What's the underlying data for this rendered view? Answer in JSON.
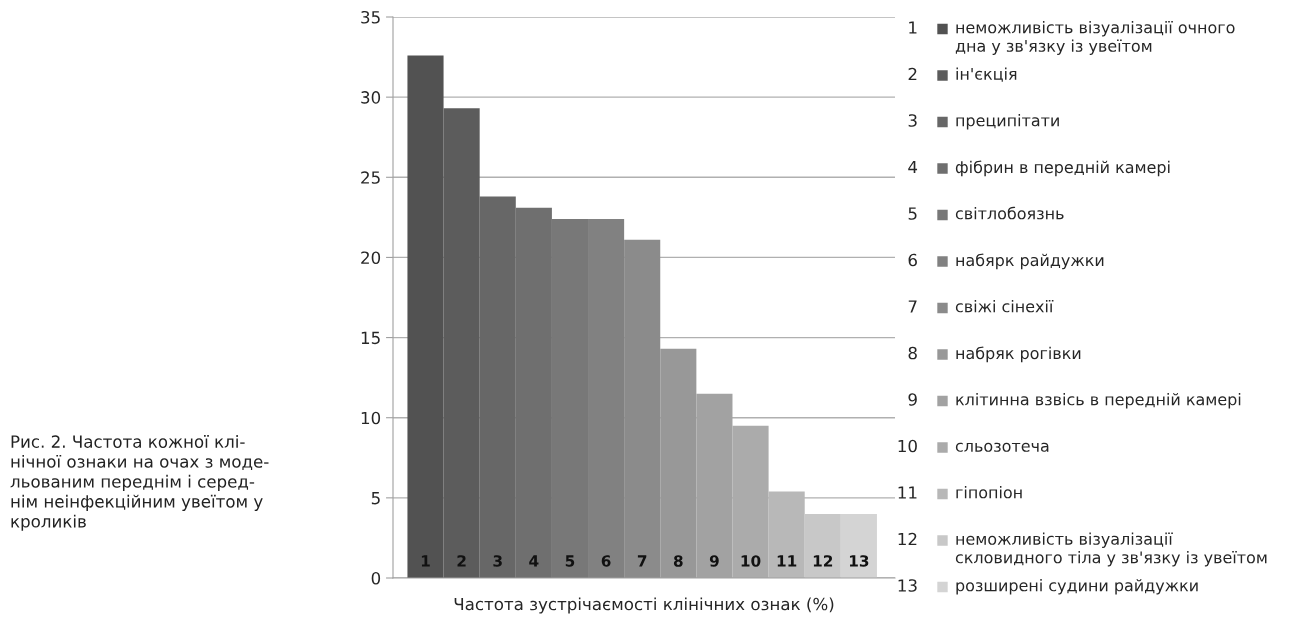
{
  "chart_data": {
    "type": "bar",
    "xlabel": "Частота зустрічаємості клінічних ознак (%)",
    "categories": [
      "1",
      "2",
      "3",
      "4",
      "5",
      "6",
      "7",
      "8",
      "9",
      "10",
      "11",
      "12",
      "13"
    ],
    "series": [
      {
        "name": "неможливість візуалізації очного\nдна у зв'язку із увеїтом",
        "color": "#525252",
        "values": [
          32.6,
          null,
          null,
          null,
          null,
          null,
          null,
          null,
          null,
          null,
          null,
          null,
          null
        ]
      },
      {
        "name": "ін'єкція",
        "color": "#5c5c5c",
        "values": [
          null,
          29.3,
          null,
          null,
          null,
          null,
          null,
          null,
          null,
          null,
          null,
          null,
          null
        ]
      },
      {
        "name": "преципітати",
        "color": "#676767",
        "values": [
          null,
          null,
          23.8,
          null,
          null,
          null,
          null,
          null,
          null,
          null,
          null,
          null,
          null
        ]
      },
      {
        "name": "фібрин в передній камері",
        "color": "#6f6f6f",
        "values": [
          null,
          null,
          null,
          23.1,
          null,
          null,
          null,
          null,
          null,
          null,
          null,
          null,
          null
        ]
      },
      {
        "name": "світлобоязнь",
        "color": "#787878",
        "values": [
          null,
          null,
          null,
          null,
          22.4,
          null,
          null,
          null,
          null,
          null,
          null,
          null,
          null
        ]
      },
      {
        "name": "набярк райдужки",
        "color": "#818181",
        "values": [
          null,
          null,
          null,
          null,
          null,
          22.4,
          null,
          null,
          null,
          null,
          null,
          null,
          null
        ]
      },
      {
        "name": "свіжі сінехії",
        "color": "#8b8b8b",
        "values": [
          null,
          null,
          null,
          null,
          null,
          null,
          21.1,
          null,
          null,
          null,
          null,
          null,
          null
        ]
      },
      {
        "name": "набряк рогівки",
        "color": "#989898",
        "values": [
          null,
          null,
          null,
          null,
          null,
          null,
          null,
          14.3,
          null,
          null,
          null,
          null,
          null
        ]
      },
      {
        "name": "клітинна взвісь в передній камері",
        "color": "#a2a2a2",
        "values": [
          null,
          null,
          null,
          null,
          null,
          null,
          null,
          null,
          11.5,
          null,
          null,
          null,
          null
        ]
      },
      {
        "name": "сльозотеча",
        "color": "#ababab",
        "values": [
          null,
          null,
          null,
          null,
          null,
          null,
          null,
          null,
          null,
          9.5,
          null,
          null,
          null
        ]
      },
      {
        "name": "гіпопіон",
        "color": "#b8b8b8",
        "values": [
          null,
          null,
          null,
          null,
          null,
          null,
          null,
          null,
          null,
          null,
          5.4,
          null,
          null
        ]
      },
      {
        "name": "неможливість візуалізації\nскловидного тіла у зв'язку із увеїтом",
        "color": "#c8c8c8",
        "values": [
          null,
          null,
          null,
          null,
          null,
          null,
          null,
          null,
          null,
          null,
          null,
          4.0,
          null
        ]
      },
      {
        "name": "розширені судини райдужки",
        "color": "#d4d4d4",
        "values": [
          null,
          null,
          null,
          null,
          null,
          null,
          null,
          null,
          null,
          null,
          null,
          null,
          4.0
        ]
      }
    ],
    "ylim": [
      0,
      35
    ],
    "yticks": [
      0,
      5,
      10,
      15,
      20,
      25,
      30,
      35
    ],
    "grid": "y",
    "legend": "right",
    "annotations": [
      "Рис. 2. Частота кожної клі-\nнічної ознаки на очах з моде-\nльованим переднім і серед-\nнім неінфекційним увеїтом у\nкроликів"
    ]
  }
}
